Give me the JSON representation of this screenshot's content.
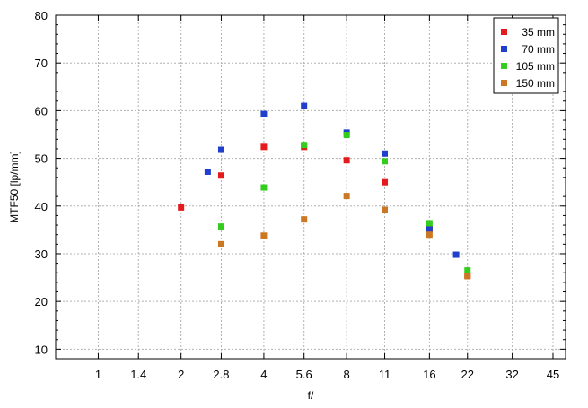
{
  "chart_data": {
    "type": "scatter",
    "title": "",
    "xlabel": "f/",
    "ylabel": "MTF50 [lp/mm]",
    "x_scale": "log2",
    "x_ticks": [
      {
        "value": 1,
        "label": "1"
      },
      {
        "value": 1.4,
        "label": "1.4"
      },
      {
        "value": 2,
        "label": "2"
      },
      {
        "value": 2.8,
        "label": "2.8"
      },
      {
        "value": 4,
        "label": "4"
      },
      {
        "value": 5.6,
        "label": "5.6"
      },
      {
        "value": 8,
        "label": "8"
      },
      {
        "value": 11,
        "label": "11"
      },
      {
        "value": 16,
        "label": "16"
      },
      {
        "value": 22,
        "label": "22"
      },
      {
        "value": 32,
        "label": "32"
      },
      {
        "value": 45,
        "label": "45"
      }
    ],
    "xlim": [
      0.7,
      50
    ],
    "ylim": [
      8,
      80
    ],
    "y_ticks": [
      10,
      20,
      30,
      40,
      50,
      60,
      70,
      80
    ],
    "grid": true,
    "legend_position": "top-right",
    "series": [
      {
        "name": "35 mm",
        "color": "#e41a1c",
        "points": [
          [
            2.0,
            39.7
          ],
          [
            2.8,
            46.4
          ],
          [
            4.0,
            52.4
          ],
          [
            5.6,
            52.4
          ],
          [
            8.0,
            49.6
          ],
          [
            11.0,
            45.0
          ],
          [
            16.0,
            35.2
          ],
          [
            22.0,
            25.4
          ]
        ]
      },
      {
        "name": "70 mm",
        "color": "#1f3fcc",
        "points": [
          [
            2.5,
            47.2
          ],
          [
            2.8,
            51.8
          ],
          [
            4.0,
            59.3
          ],
          [
            5.6,
            61.0
          ],
          [
            8.0,
            55.4
          ],
          [
            11.0,
            51.0
          ],
          [
            16.0,
            35.1
          ],
          [
            20.0,
            29.8
          ]
        ]
      },
      {
        "name": "105 mm",
        "color": "#33cc1f",
        "points": [
          [
            2.8,
            35.7
          ],
          [
            4.0,
            43.9
          ],
          [
            5.6,
            52.8
          ],
          [
            8.0,
            54.9
          ],
          [
            11.0,
            49.4
          ],
          [
            16.0,
            36.4
          ],
          [
            22.0,
            26.5
          ]
        ]
      },
      {
        "name": "150 mm",
        "color": "#cc7722",
        "points": [
          [
            2.8,
            32.0
          ],
          [
            4.0,
            33.8
          ],
          [
            5.6,
            37.2
          ],
          [
            8.0,
            42.1
          ],
          [
            11.0,
            39.2
          ],
          [
            16.0,
            34.0
          ],
          [
            22.0,
            25.3
          ]
        ]
      }
    ]
  }
}
